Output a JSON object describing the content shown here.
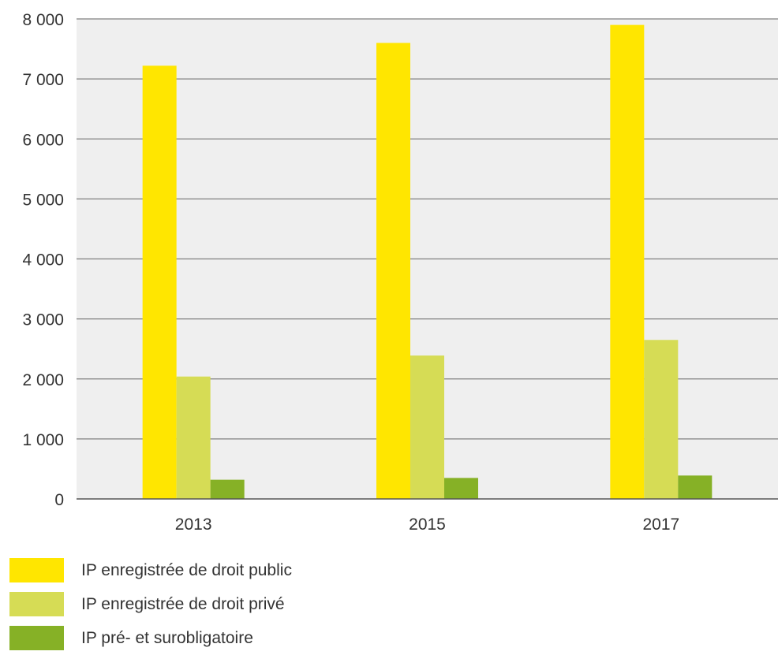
{
  "chart_data": {
    "type": "bar",
    "categories": [
      "2013",
      "2015",
      "2017"
    ],
    "series": [
      {
        "name": "IP enregistrée de droit public",
        "values": [
          7220,
          7600,
          7900
        ],
        "color": "#ffe600"
      },
      {
        "name": "IP enregistrée de droit privé",
        "values": [
          2040,
          2390,
          2650
        ],
        "color": "#d6dc55"
      },
      {
        "name": "IP pré- et surobligatoire",
        "values": [
          320,
          350,
          390
        ],
        "color": "#86b126"
      }
    ],
    "ylim": [
      0,
      8000
    ],
    "yticks": [
      0,
      1000,
      2000,
      3000,
      4000,
      5000,
      6000,
      7000,
      8000
    ],
    "ytick_labels": [
      "0",
      "1 000",
      "2 000",
      "3 000",
      "4 000",
      "5 000",
      "6 000",
      "7 000",
      "8 000"
    ],
    "title": "",
    "xlabel": "",
    "ylabel": "",
    "grid": true,
    "plot_background": "#efefef",
    "legend_position": "bottom-left"
  }
}
